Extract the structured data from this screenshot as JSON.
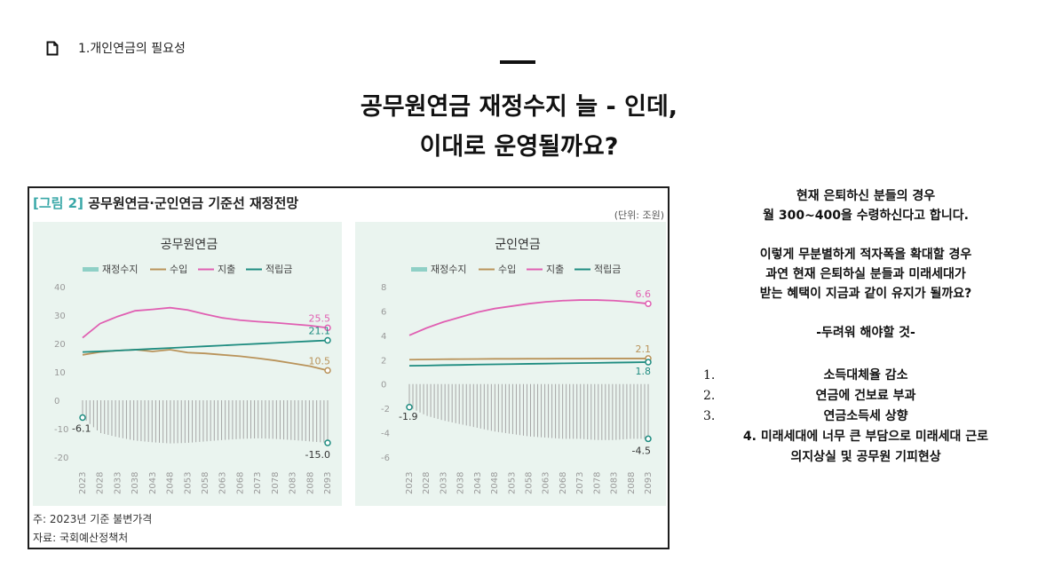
{
  "breadcrumb": {
    "icon": "document-icon",
    "text": "1.개인연금의 필요성"
  },
  "title": {
    "line1": "공무원연금 재정수지 늘 - 인데,",
    "line2": "이대로 운영될까요?"
  },
  "figure": {
    "label": "[그림 2]",
    "title": "공무원연금·군인연금 기준선 재정전망",
    "unit": "(단위: 조원)",
    "note1": "주: 2023년 기준 불변가격",
    "note2": "자료: 국회예산정책처"
  },
  "colors": {
    "balance": "#8fd0c6",
    "revenue": "#b9935a",
    "expense": "#e05fb2",
    "reserve": "#1e8c80",
    "panel_bg": "#eaf4ef",
    "accent": "#3aa8a8"
  },
  "chart_data": [
    {
      "type": "line",
      "title": "공무원연금",
      "legend": [
        "재정수지",
        "수입",
        "지출",
        "적립금"
      ],
      "x": [
        "2023",
        "2028",
        "2033",
        "2038",
        "2043",
        "2048",
        "2053",
        "2058",
        "2063",
        "2068",
        "2073",
        "2078",
        "2083",
        "2088",
        "2093"
      ],
      "y_ticks": [
        "40",
        "30",
        "20",
        "10",
        "0",
        "-10",
        "-20"
      ],
      "ylim": [
        -20,
        40
      ],
      "series": [
        {
          "name": "재정수지",
          "kind": "bar",
          "values": [
            -6.1,
            -11.5,
            -13.0,
            -14.2,
            -14.8,
            -15.2,
            -15.0,
            -14.5,
            -14.0,
            -13.6,
            -13.4,
            -13.6,
            -14.0,
            -14.5,
            -15.0
          ]
        },
        {
          "name": "수입",
          "values": [
            16.0,
            17.0,
            17.5,
            17.8,
            17.2,
            17.8,
            16.8,
            16.5,
            16.0,
            15.5,
            14.8,
            14.0,
            13.0,
            12.0,
            10.5
          ]
        },
        {
          "name": "지출",
          "values": [
            22.0,
            27.0,
            29.5,
            31.5,
            32.0,
            32.6,
            31.8,
            30.3,
            29.0,
            28.2,
            27.7,
            27.3,
            26.8,
            26.3,
            25.5
          ]
        },
        {
          "name": "적립금",
          "values": [
            17.0,
            17.2,
            17.5,
            17.8,
            18.1,
            18.4,
            18.7,
            19.0,
            19.3,
            19.6,
            19.9,
            20.2,
            20.5,
            20.8,
            21.1
          ]
        }
      ],
      "data_labels": {
        "start_balance": "-6.1",
        "end_expense": "25.5",
        "end_reserve": "21.1",
        "end_revenue": "10.5",
        "end_balance": "-15.0"
      }
    },
    {
      "type": "line",
      "title": "군인연금",
      "legend": [
        "재정수지",
        "수입",
        "지출",
        "적립금"
      ],
      "x": [
        "2023",
        "2028",
        "2033",
        "2038",
        "2043",
        "2048",
        "2053",
        "2058",
        "2063",
        "2068",
        "2073",
        "2078",
        "2083",
        "2088",
        "2093"
      ],
      "y_ticks": [
        "8",
        "6",
        "4",
        "2",
        "0",
        "-2",
        "-4",
        "-6"
      ],
      "ylim": [
        -6,
        8
      ],
      "series": [
        {
          "name": "재정수지",
          "kind": "bar",
          "values": [
            -1.9,
            -2.6,
            -3.0,
            -3.3,
            -3.6,
            -3.9,
            -4.1,
            -4.3,
            -4.4,
            -4.5,
            -4.5,
            -4.6,
            -4.6,
            -4.5,
            -4.5
          ]
        },
        {
          "name": "수입",
          "values": [
            2.0,
            2.02,
            2.04,
            2.05,
            2.06,
            2.07,
            2.07,
            2.08,
            2.08,
            2.09,
            2.09,
            2.1,
            2.1,
            2.1,
            2.1
          ]
        },
        {
          "name": "지출",
          "values": [
            4.0,
            4.6,
            5.1,
            5.5,
            5.9,
            6.2,
            6.4,
            6.6,
            6.75,
            6.85,
            6.9,
            6.9,
            6.85,
            6.75,
            6.6
          ]
        },
        {
          "name": "적립금",
          "values": [
            1.5,
            1.52,
            1.55,
            1.57,
            1.6,
            1.62,
            1.64,
            1.66,
            1.68,
            1.7,
            1.72,
            1.74,
            1.76,
            1.78,
            1.8
          ]
        }
      ],
      "data_labels": {
        "start_balance": "-1.9",
        "end_expense": "6.6",
        "end_revenue": "2.1",
        "end_reserve": "1.8",
        "end_balance": "-4.5"
      }
    }
  ],
  "right": {
    "p1": [
      "현재 은퇴하신 분들의 경우",
      "월 300~400을 수령하신다고 합니다."
    ],
    "p2": [
      "이렇게 무분별하게 적자폭을 확대할 경우",
      "과연 현재 은퇴하실 분들과 미래세대가",
      "받는 혜택이 지금과 같이 유지가 될까요?"
    ],
    "p3": "-두려워 해야할 것-",
    "list": [
      {
        "num": "1.",
        "text": "소득대체율 감소"
      },
      {
        "num": "2.",
        "text": "연금에 건보료 부과"
      },
      {
        "num": "3.",
        "text": "연금소득세 상향"
      }
    ],
    "item4_line1": "4. 미래세대에 너무 큰 부담으로 미래세대 근로",
    "item4_line2": "의지상실 및 공무원 기피현상"
  }
}
